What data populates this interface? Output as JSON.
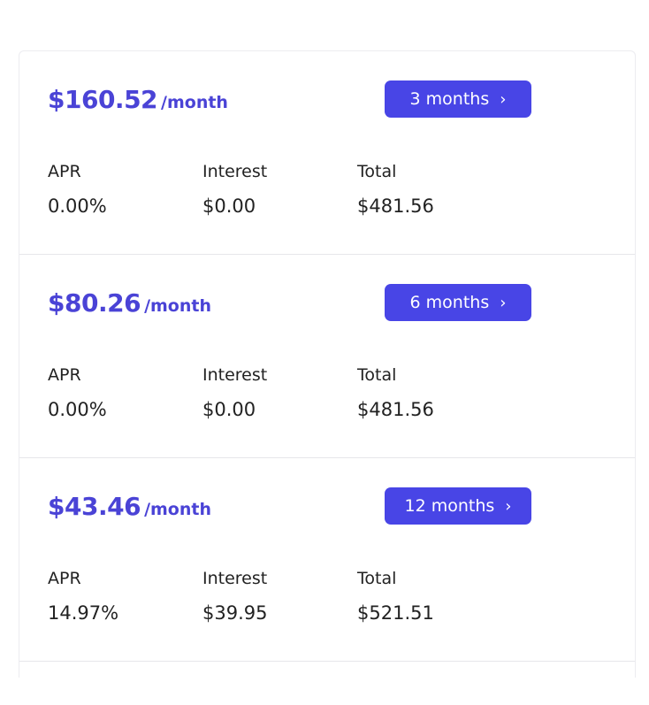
{
  "colors": {
    "accent": "#4845e6",
    "price": "#4a43d6"
  },
  "labels": {
    "apr": "APR",
    "interest": "Interest",
    "total": "Total",
    "per": "/month"
  },
  "plans": [
    {
      "monthly": "$160.52",
      "term": "3 months",
      "apr": "0.00%",
      "interest": "$0.00",
      "total": "$481.56"
    },
    {
      "monthly": "$80.26",
      "term": "6 months",
      "apr": "0.00%",
      "interest": "$0.00",
      "total": "$481.56"
    },
    {
      "monthly": "$43.46",
      "term": "12 months",
      "apr": "14.97%",
      "interest": "$39.95",
      "total": "$521.51"
    }
  ],
  "icons": {
    "button": "chevron-right-icon"
  }
}
